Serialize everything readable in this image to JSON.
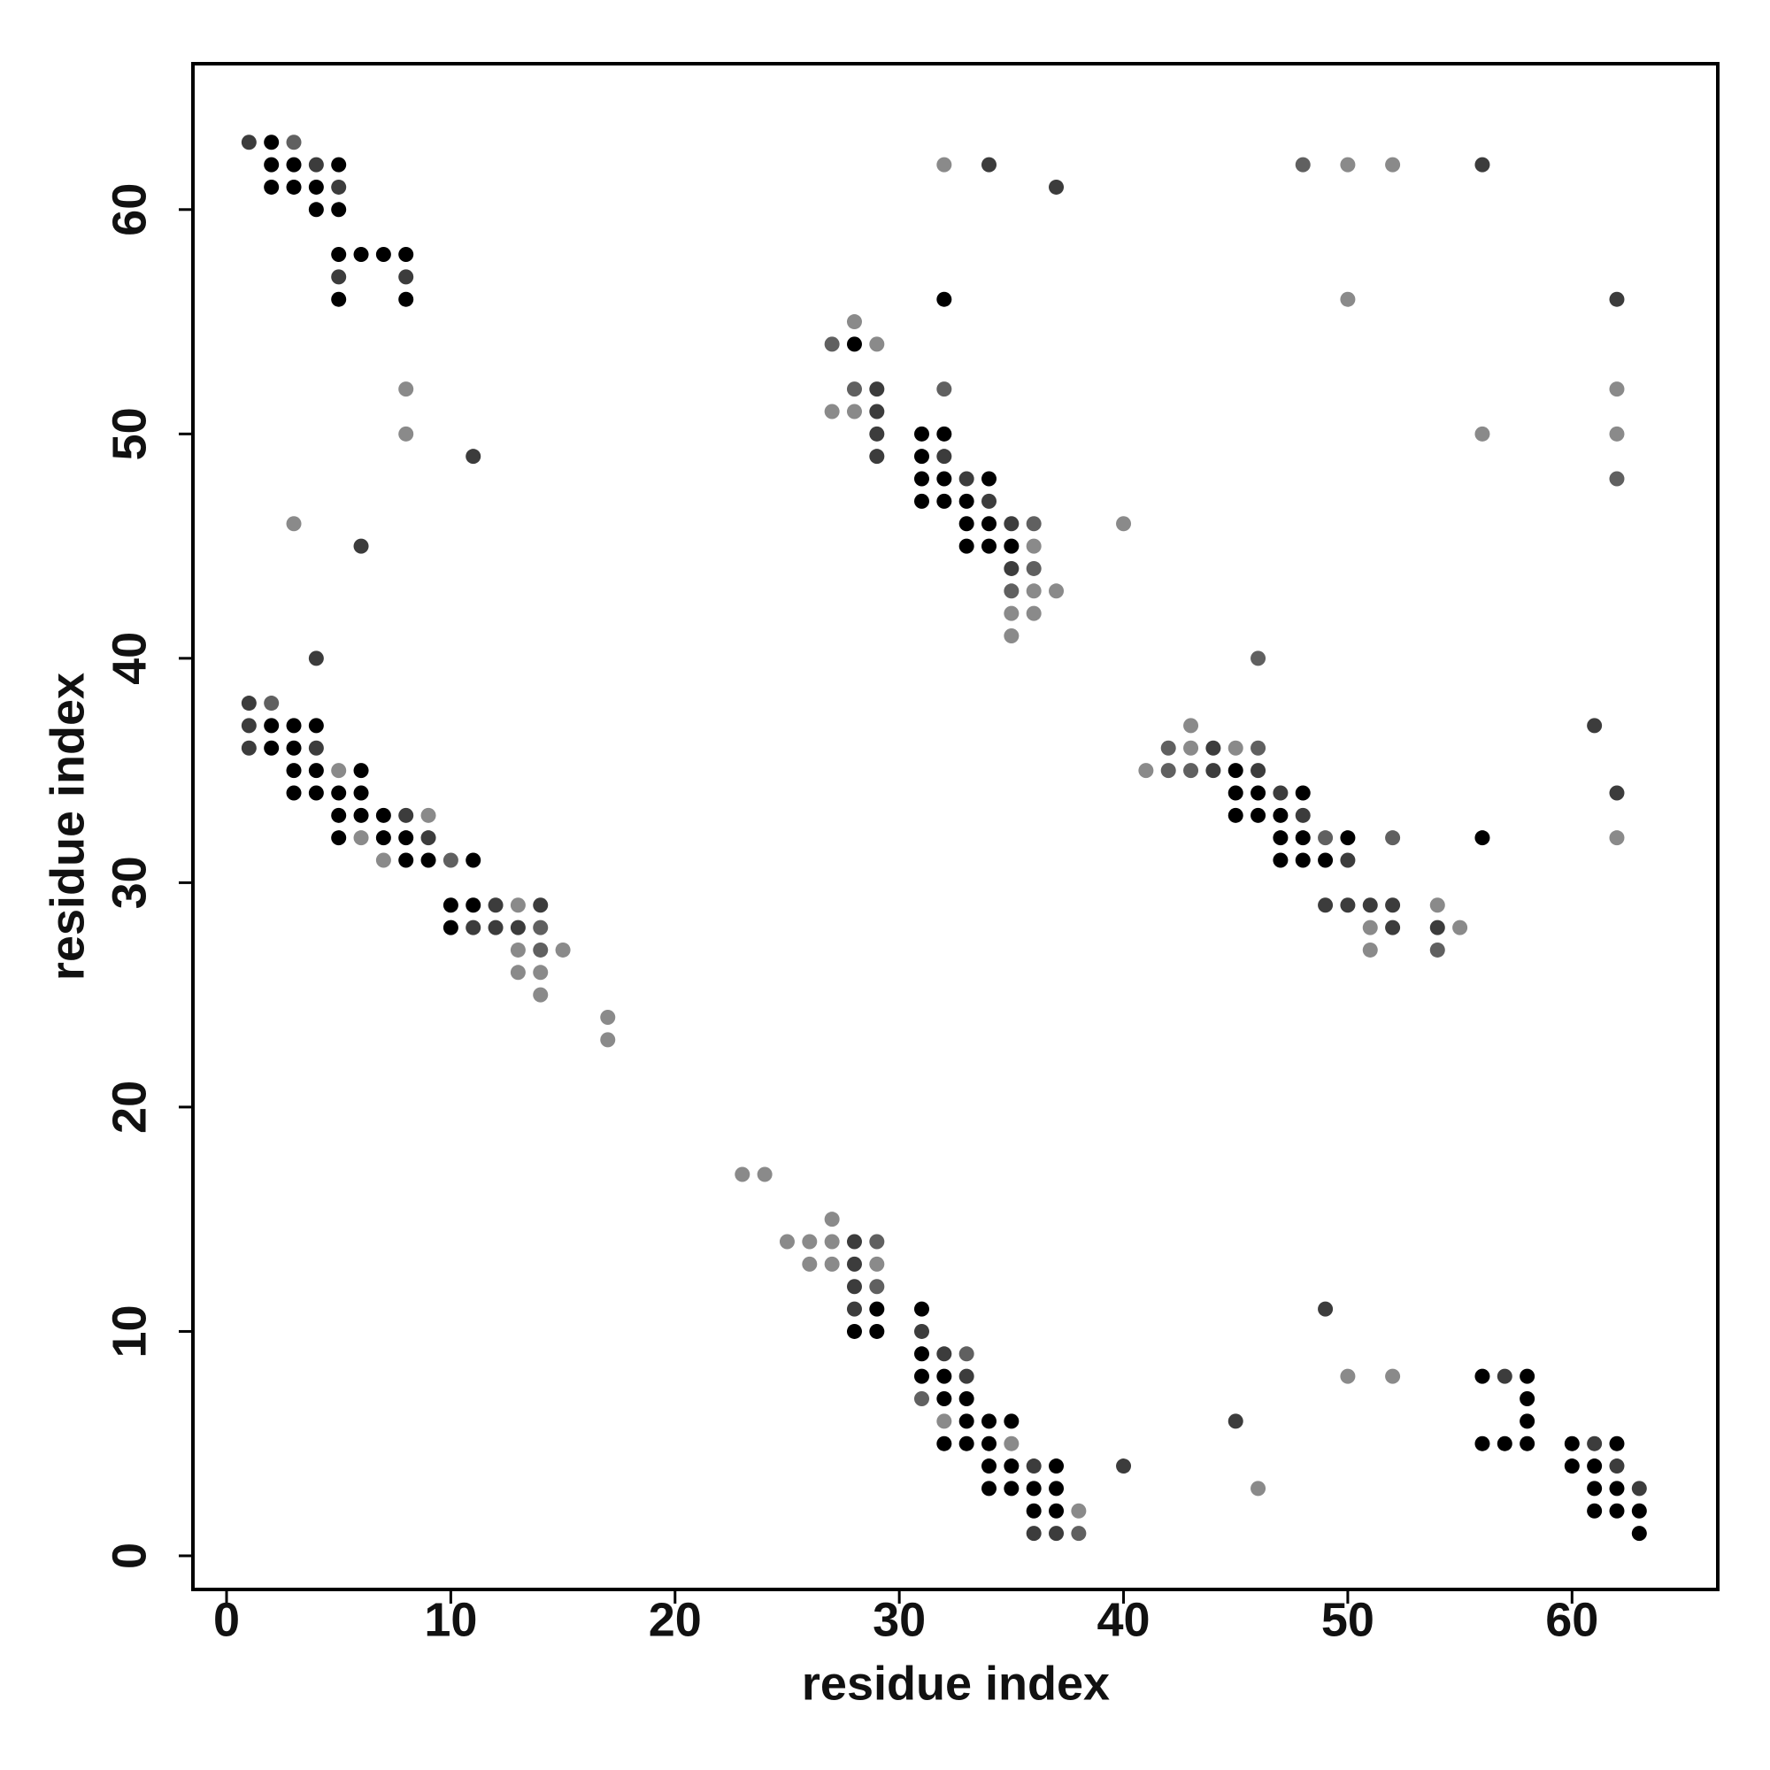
{
  "chart_data": {
    "type": "scatter",
    "xlabel": "residue index",
    "ylabel": "residue index",
    "xlim": [
      -1.5,
      66.5
    ],
    "ylim": [
      -1.5,
      66.5
    ],
    "xticks": [
      0,
      10,
      20,
      30,
      40,
      50,
      60
    ],
    "yticks": [
      0,
      10,
      20,
      30,
      40,
      50,
      60
    ],
    "series": [
      {
        "color": "#000000",
        "x": [
          2,
          2,
          3,
          5,
          2,
          3,
          4,
          4,
          5,
          5,
          6,
          7,
          8,
          5,
          8,
          32,
          28,
          31,
          32,
          31,
          31,
          32,
          34,
          31,
          32,
          33,
          33,
          34,
          33,
          34,
          35,
          2,
          3,
          4,
          2,
          3,
          3,
          4,
          6,
          45,
          3,
          4,
          5,
          6,
          45,
          46,
          48,
          5,
          6,
          7,
          45,
          46,
          47,
          5,
          7,
          8,
          47,
          48,
          50,
          56,
          8,
          9,
          11,
          47,
          48,
          49,
          10,
          11,
          10,
          29,
          31,
          28,
          29,
          31,
          31,
          32,
          56,
          58,
          32,
          33,
          58,
          33,
          34,
          35,
          58,
          32,
          33,
          34,
          56,
          57,
          58,
          60,
          62,
          34,
          35,
          37,
          60,
          61,
          34,
          35,
          36,
          37,
          61,
          62,
          36,
          37,
          61,
          62,
          63,
          63
        ],
        "y": [
          63,
          62,
          62,
          62,
          61,
          61,
          61,
          60,
          60,
          58,
          58,
          58,
          58,
          56,
          56,
          56,
          54,
          50,
          50,
          49,
          48,
          48,
          48,
          47,
          47,
          47,
          46,
          46,
          45,
          45,
          45,
          37,
          37,
          37,
          36,
          36,
          35,
          35,
          35,
          35,
          34,
          34,
          34,
          34,
          34,
          34,
          34,
          33,
          33,
          33,
          33,
          33,
          33,
          32,
          32,
          32,
          32,
          32,
          32,
          32,
          31,
          31,
          31,
          31,
          31,
          31,
          29,
          29,
          28,
          11,
          11,
          10,
          10,
          9,
          8,
          8,
          8,
          8,
          7,
          7,
          7,
          6,
          6,
          6,
          6,
          5,
          5,
          5,
          5,
          5,
          5,
          5,
          5,
          4,
          4,
          4,
          4,
          4,
          3,
          3,
          3,
          3,
          3,
          3,
          2,
          2,
          2,
          2,
          2,
          1
        ]
      },
      {
        "color": "#3c3c3c",
        "x": [
          1,
          4,
          34,
          56,
          5,
          37,
          5,
          8,
          62,
          29,
          29,
          29,
          11,
          29,
          32,
          33,
          34,
          35,
          6,
          35,
          4,
          1,
          1,
          61,
          1,
          4,
          44,
          44,
          46,
          47,
          62,
          8,
          48,
          9,
          50,
          12,
          14,
          49,
          50,
          51,
          52,
          11,
          12,
          13,
          52,
          54,
          28,
          28,
          28,
          28,
          49,
          31,
          32,
          33,
          57,
          45,
          61,
          36,
          40,
          62,
          63,
          36,
          37
        ],
        "y": [
          63,
          62,
          62,
          62,
          61,
          61,
          57,
          57,
          56,
          52,
          51,
          50,
          49,
          49,
          49,
          48,
          47,
          46,
          45,
          44,
          40,
          38,
          37,
          37,
          36,
          36,
          36,
          35,
          35,
          34,
          34,
          33,
          33,
          32,
          31,
          29,
          29,
          29,
          29,
          29,
          29,
          28,
          28,
          28,
          28,
          28,
          14,
          13,
          12,
          11,
          11,
          10,
          9,
          8,
          8,
          6,
          5,
          4,
          4,
          4,
          3,
          1,
          1
        ]
      },
      {
        "color": "#606060",
        "x": [
          3,
          48,
          27,
          28,
          32,
          62,
          36,
          36,
          35,
          46,
          2,
          42,
          46,
          42,
          43,
          10,
          49,
          52,
          14,
          14,
          54,
          29,
          29,
          33,
          31,
          38
        ],
        "y": [
          63,
          62,
          54,
          52,
          52,
          48,
          46,
          44,
          43,
          40,
          38,
          36,
          36,
          35,
          35,
          31,
          32,
          32,
          28,
          27,
          27,
          14,
          12,
          9,
          7,
          1
        ]
      },
      {
        "color": "#8a8a8a",
        "x": [
          32,
          50,
          52,
          50,
          28,
          29,
          8,
          62,
          27,
          28,
          8,
          56,
          62,
          3,
          40,
          36,
          36,
          37,
          35,
          36,
          35,
          43,
          43,
          45,
          5,
          41,
          9,
          6,
          62,
          7,
          13,
          54,
          51,
          55,
          13,
          15,
          51,
          13,
          14,
          14,
          17,
          17,
          23,
          24,
          27,
          25,
          26,
          27,
          26,
          27,
          29,
          50,
          52,
          32,
          35,
          46,
          38
        ],
        "y": [
          62,
          62,
          62,
          56,
          55,
          54,
          52,
          52,
          51,
          51,
          50,
          50,
          50,
          46,
          46,
          45,
          43,
          43,
          42,
          42,
          41,
          37,
          36,
          36,
          35,
          35,
          33,
          32,
          32,
          31,
          29,
          29,
          28,
          28,
          27,
          27,
          27,
          26,
          26,
          25,
          24,
          23,
          17,
          17,
          15,
          14,
          14,
          14,
          13,
          13,
          13,
          8,
          8,
          6,
          5,
          3,
          2
        ]
      }
    ]
  }
}
